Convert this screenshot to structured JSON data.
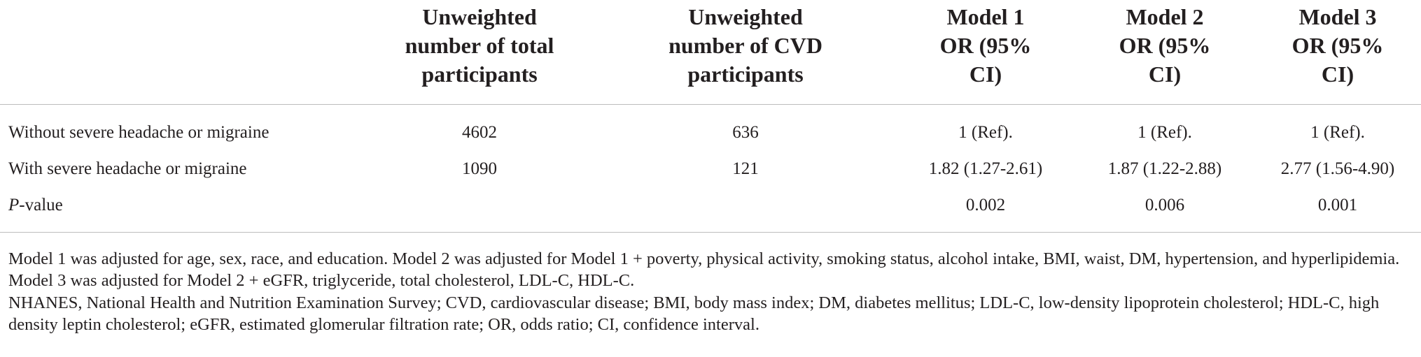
{
  "table": {
    "headers": [
      {
        "lines": [
          ""
        ]
      },
      {
        "lines": [
          "Unweighted",
          "number of total",
          "participants"
        ]
      },
      {
        "lines": [
          "Unweighted",
          "number of CVD",
          "participants"
        ]
      },
      {
        "lines": [
          "Model 1",
          "OR (95%",
          "CI)"
        ]
      },
      {
        "lines": [
          "Model 2",
          "OR (95%",
          "CI)"
        ]
      },
      {
        "lines": [
          "Model 3",
          "OR (95%",
          "CI)"
        ]
      }
    ],
    "rows": [
      {
        "label": "Without severe headache or migraine",
        "total": "4602",
        "cvd": "636",
        "model1": "1 (Ref).",
        "model2": "1 (Ref).",
        "model3": "1 (Ref)."
      },
      {
        "label": "With severe headache or migraine",
        "total": "1090",
        "cvd": "121",
        "model1": "1.82 (1.27-2.61)",
        "model2": "1.87 (1.22-2.88)",
        "model3": "2.77 (1.56-4.90)"
      },
      {
        "label_italic": "P",
        "label_rest": "-value",
        "total": "",
        "cvd": "",
        "model1": "0.002",
        "model2": "0.006",
        "model3": "0.001"
      }
    ]
  },
  "notes": [
    "Model 1 was adjusted for age, sex, race, and education. Model 2 was adjusted for Model 1 + poverty, physical activity, smoking status, alcohol intake, BMI, waist, DM, hypertension, and hyperlipidemia. Model 3 was adjusted for Model 2 + eGFR, triglyceride, total cholesterol, LDL-C, HDL-C.",
    "NHANES, National Health and Nutrition Examination Survey; CVD, cardiovascular disease; BMI, body mass index; DM, diabetes mellitus; LDL-C, low-density lipoprotein cholesterol; HDL-C, high density leptin cholesterol; eGFR, estimated glomerular filtration rate; OR, odds ratio; CI, confidence interval."
  ]
}
